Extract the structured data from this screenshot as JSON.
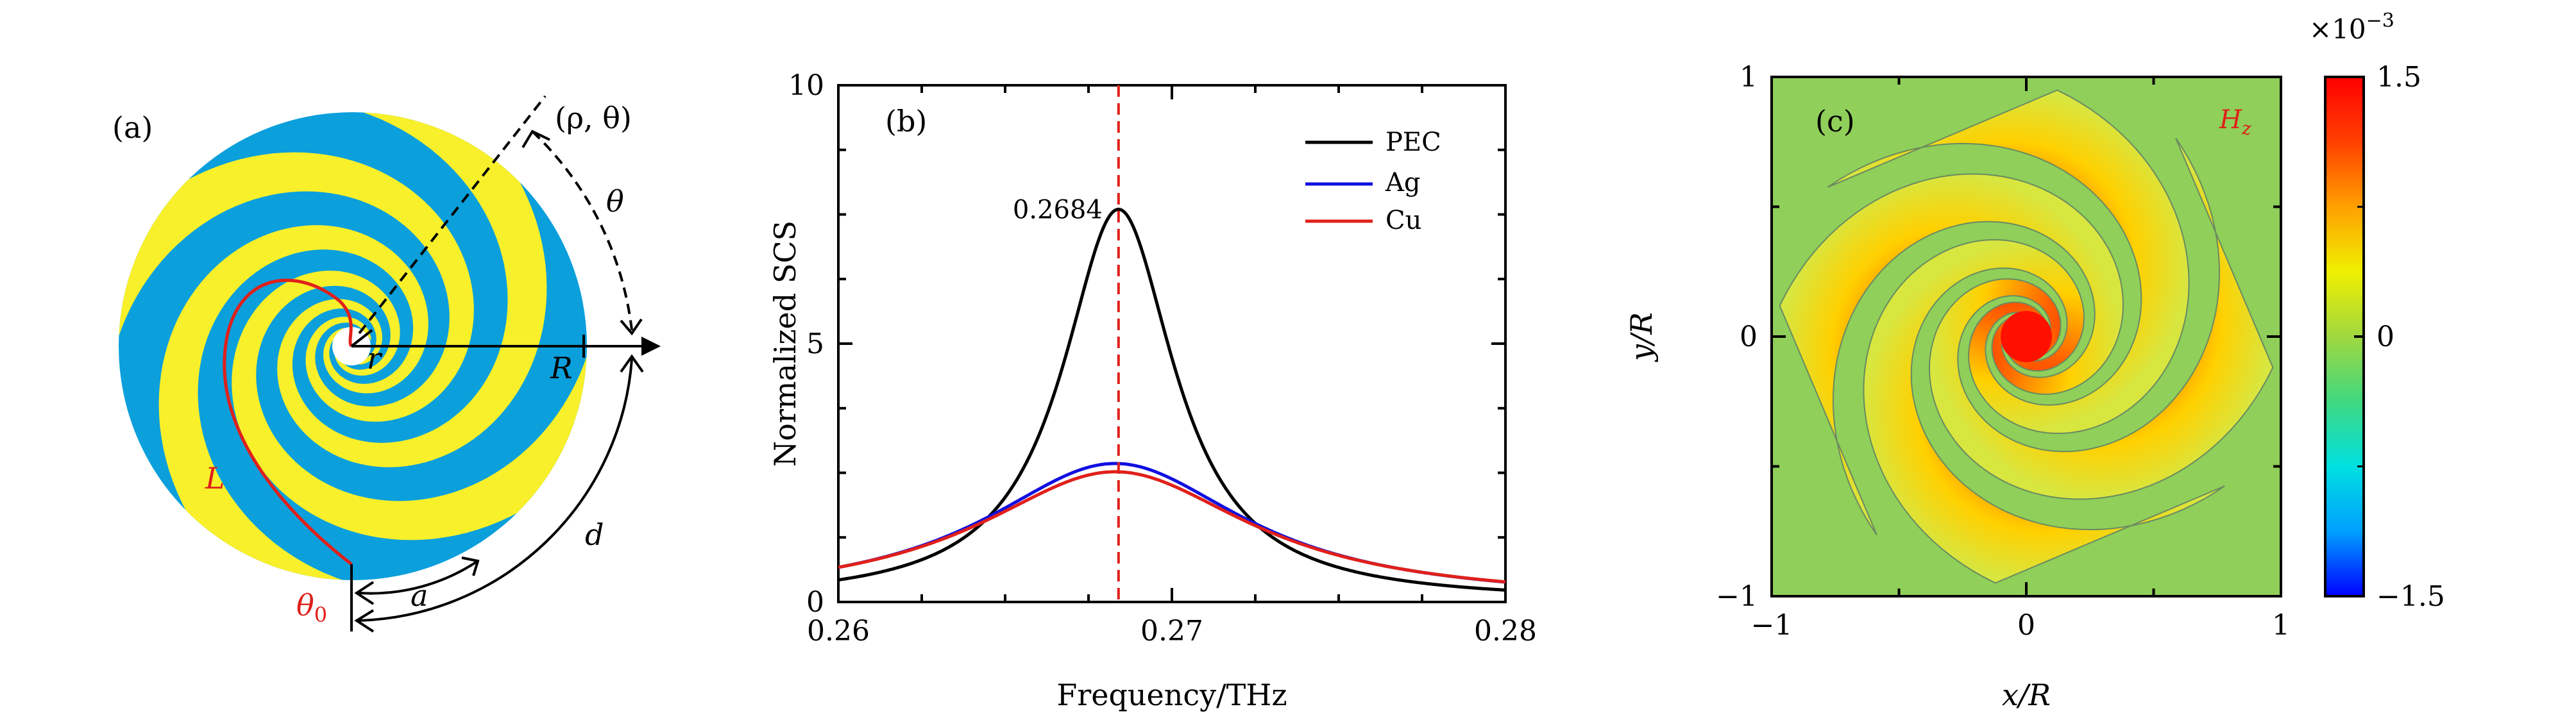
{
  "panel_a": {
    "label": "(a)",
    "point_label": "(ρ, θ)",
    "theta_label": "θ",
    "r_label": "r",
    "R_label": "R",
    "L_label": "L",
    "theta0_label": "θ",
    "theta0_sub": "0",
    "a_label": "a",
    "d_label": "d",
    "colors": {
      "disk": "#0b9fdc",
      "arm": "#f8f02a",
      "curve": "#e0201a"
    }
  },
  "chart_data": [
    {
      "panel": "(b)",
      "type": "line",
      "xlabel": "Frequency/THz",
      "ylabel": "Normalized SCS",
      "xlim": [
        0.26,
        0.28
      ],
      "ylim": [
        0,
        10
      ],
      "x_ticks": [
        "0.26",
        "0.27",
        "0.28"
      ],
      "y_ticks": [
        "0",
        "5",
        "10"
      ],
      "vline": {
        "x": 0.2684,
        "style": "dashed",
        "color": "#e0201a"
      },
      "annotation": {
        "text": "0.2684",
        "x": 0.2684,
        "y": 7.6
      },
      "legend_position": "top-right",
      "series": [
        {
          "name": "PEC",
          "color": "#000000",
          "center": 0.2684,
          "peak": 7.6,
          "hwhm": 0.00205,
          "baseline": 0.0
        },
        {
          "name": "Ag",
          "color": "#1010e0",
          "center": 0.2683,
          "peak": 2.68,
          "hwhm": 0.0048,
          "baseline": 0.0
        },
        {
          "name": "Cu",
          "color": "#e0201a",
          "center": 0.2683,
          "peak": 2.52,
          "hwhm": 0.005,
          "baseline": 0.0
        }
      ]
    },
    {
      "panel": "(c)",
      "type": "heatmap",
      "title": "H",
      "title_sub": "z",
      "xlabel": "x/R",
      "ylabel": "y/R",
      "xlim": [
        -1,
        1
      ],
      "ylim": [
        -1,
        1
      ],
      "x_ticks": [
        "−1",
        "0",
        "1"
      ],
      "y_ticks": [
        "−1",
        "0",
        "1"
      ],
      "colorbar": {
        "range": [
          -1.5,
          1.5
        ],
        "ticks": [
          "1.5",
          "0",
          "−1.5"
        ],
        "multiplier_base": "×10",
        "multiplier_exp": "−3",
        "colors": [
          "#0000ff",
          "#00a0ff",
          "#00e0e0",
          "#40d880",
          "#a0d840",
          "#f0f000",
          "#ffa000",
          "#ff4000",
          "#ff0000"
        ]
      },
      "background_level": 0.0,
      "background_color": "#8fcf5a"
    }
  ]
}
